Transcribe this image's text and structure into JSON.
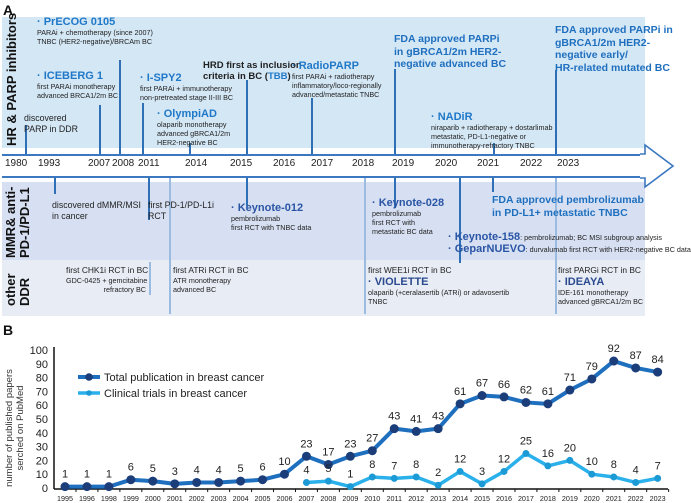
{
  "panel_a": {
    "label": "A",
    "rows": {
      "hr": "HR & PARP inhibitors",
      "mmr_1": "MMR& anti-",
      "mmr_2": "PD-1/PD-L1",
      "ddr_1": "other",
      "ddr_2": "DDR"
    },
    "years": [
      "1980",
      "1993",
      "2007",
      "2008",
      "2011",
      "2014",
      "2015",
      "2016",
      "2017",
      "2018",
      "2019",
      "2020",
      "2021",
      "2022",
      "2023"
    ],
    "hr_events": {
      "precog": {
        "title": "· PrECOG 0105",
        "l1": "PARAi + chemotherapy (since 2007)",
        "l2": "TNBC (HER2-negative)/BRCAm BC"
      },
      "iceberg": {
        "title": "· ICEBERG 1",
        "l1": "first PARAi monotherapy",
        "l2": "advanced BRCA1/2m BC"
      },
      "parp_ddr": {
        "l1": "discovered",
        "l2": "PARP in DDR"
      },
      "ispy": {
        "title": "· I-SPY2",
        "l1": "first PARAi + immunotherapy",
        "l2": "non-pretreated stage II-III BC"
      },
      "olympiad": {
        "title": "· OlympiAD",
        "l1": "olaparib monotherapy",
        "l2": "advanced gBRCA1/2m",
        "l3": "HER2-negative BC"
      },
      "hrd": {
        "l1": "HRD first as inclusion",
        "l2a": "criteria in BC (",
        "l2b": "TBB",
        "l2c": ")"
      },
      "radioparp": {
        "title": "· RadioPARP",
        "l1": "first PARAi + radiotherapy",
        "l2": "inflammatory/loco-regionally",
        "l3": "advanced/metastatic TNBC"
      },
      "fda_2019": {
        "l1": "FDA approved PARPi",
        "l2": "in gBRCA1/2m HER2-",
        "l3": "negative advanced BC"
      },
      "nadir": {
        "title": "· NADiR",
        "l1": "niraparib + radiotherapy + dostarlimab",
        "l2": "metastatic, PD-L1-negative or",
        "l3": "immunotherapy-refractory TNBC"
      },
      "fda_2023": {
        "l1": "FDA approved PARPi in",
        "l2": "gBRCA1/2m HER2-",
        "l3": "negative early/",
        "l4": "HR-related mutated BC"
      }
    },
    "mmr_events": {
      "dmmr": {
        "l1": "discovered dMMR/MSI",
        "l2": "in cancer"
      },
      "pd1": {
        "l1": "first PD-1/PD-L1i",
        "l2": "RCT"
      },
      "kn012": {
        "title": "· Keynote-012",
        "l1": "pembrolizumab",
        "l2": "first RCT with TNBC data"
      },
      "kn028": {
        "title": "· Keynote-028",
        "l1": "pembrolizumab",
        "l2": "first RCT with",
        "l3": "metastatic BC data"
      },
      "fda_pembro": {
        "l1": "FDA approved pembrolizumab",
        "l2": "in PD-L1+ metastatic TNBC"
      },
      "kn158": {
        "title": "· Keynote-158",
        "desc": ": pembrolizumab; BC MSI subgroup analysis"
      },
      "geparnuevo": {
        "title": "· GeparNUEVO",
        "desc": ": durvalumab first RCT with HER2-negative BC data"
      }
    },
    "ddr_events": {
      "chk1": {
        "l1": "first CHK1i RCT in BC",
        "l2": "GDC-0425 + gemcitabine",
        "l3": "refractory BC"
      },
      "atr": {
        "l1": "first ATRi RCT in BC",
        "l2": "ATR monotherapy",
        "l3": "advanced BC"
      },
      "wee1": {
        "l1": "first WEE1i RCT in BC",
        "title": "· VIOLETTE",
        "l2": "olaparib (+ceralasertib (ATRi) or adavosertib",
        "l3": "TNBC"
      },
      "parg": {
        "l1": "first PARGi RCT in BC",
        "title": "· IDEAYA",
        "l2": "IDE-161 monotherapy",
        "l3": "advanced gBRCA1/2m BC"
      }
    },
    "colors": {
      "hr_band": "#d4e7f5",
      "mmr_band": "#d7e0f2",
      "accent": "#1f78c8",
      "timeline": "#3b78c0"
    }
  },
  "panel_b": {
    "label": "B"
  },
  "chart_data": {
    "type": "line",
    "title": "",
    "xlabel": "",
    "ylabel": "number of published papers serched on PubMed",
    "ylabel_l1": "number of published papers",
    "ylabel_l2": "serched on PubMed",
    "ylim": [
      0,
      100
    ],
    "yticks": [
      0,
      10,
      20,
      30,
      40,
      50,
      60,
      70,
      80,
      90,
      100
    ],
    "categories": [
      "1995",
      "1996",
      "1998",
      "1999",
      "2000",
      "2001",
      "2002",
      "2003",
      "2004",
      "2005",
      "2006",
      "2007",
      "2008",
      "2009",
      "2010",
      "2011",
      "2012",
      "2013",
      "2014",
      "2015",
      "2016",
      "2017",
      "2018",
      "2019",
      "2020",
      "2021",
      "2022",
      "2023"
    ],
    "legend_position": "top-left",
    "series": [
      {
        "name": "Total publication in breast cancer",
        "color": "#1f6fbf",
        "marker_color": "#1b3d7a",
        "values": [
          1,
          1,
          1,
          6,
          5,
          3,
          4,
          4,
          5,
          6,
          10,
          23,
          17,
          23,
          27,
          43,
          41,
          43,
          61,
          67,
          66,
          62,
          61,
          71,
          79,
          92,
          87,
          84
        ]
      },
      {
        "name": "Clinical trials in breast cancer",
        "color": "#2ab0ea",
        "marker_color": "#1c9ad6",
        "values": [
          null,
          null,
          null,
          null,
          null,
          null,
          null,
          null,
          null,
          null,
          null,
          4,
          5,
          1,
          8,
          7,
          8,
          2,
          12,
          3,
          12,
          25,
          16,
          20,
          10,
          8,
          4,
          7
        ]
      }
    ]
  }
}
